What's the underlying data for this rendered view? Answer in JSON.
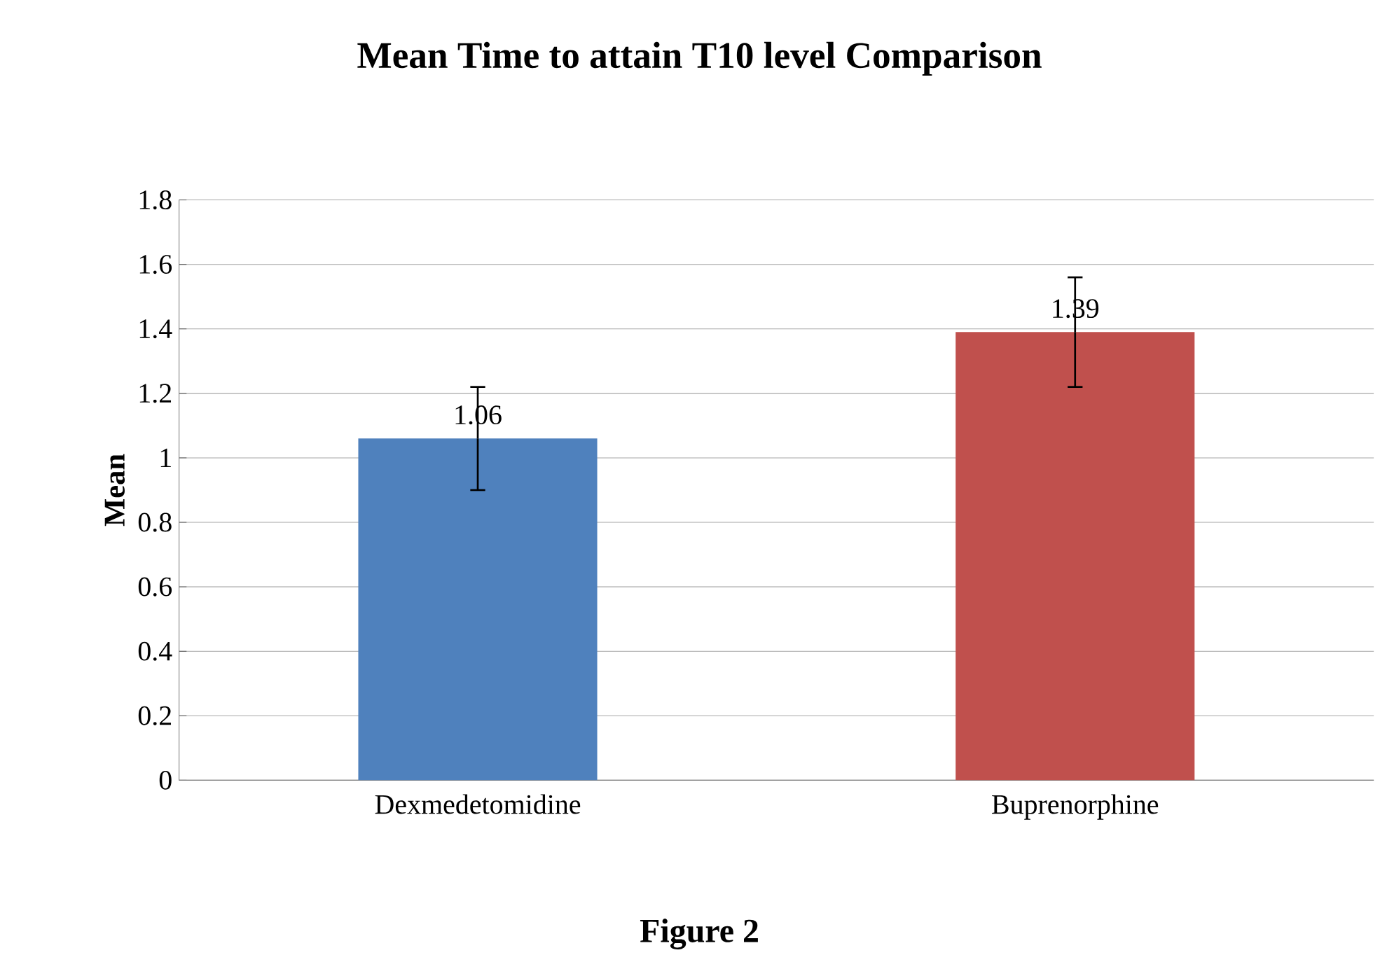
{
  "chart_data": {
    "type": "bar",
    "title": "Mean Time to attain T10 level Comparison",
    "ylabel": "Mean",
    "categories": [
      "Dexmedetomidine",
      "Buprenorphine"
    ],
    "values": [
      1.06,
      1.39
    ],
    "colors": [
      "#4f81bd",
      "#c0504d"
    ],
    "errors": [
      0.16,
      0.17
    ],
    "data_labels": true,
    "ylim": [
      0,
      1.8
    ],
    "yticks": [
      0,
      0.2,
      0.4,
      0.6,
      0.8,
      1,
      1.2,
      1.4,
      1.6,
      1.8
    ],
    "grid": "y",
    "annotations": [
      "Figure 2"
    ]
  }
}
